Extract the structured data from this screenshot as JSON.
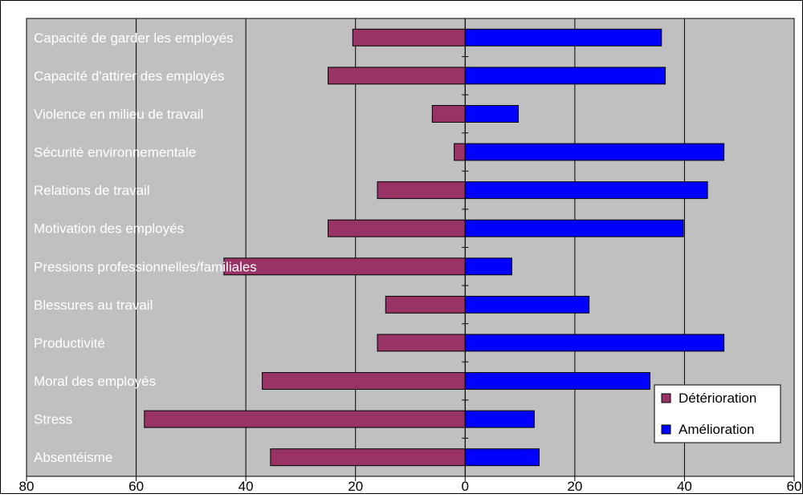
{
  "chart_data": {
    "type": "bar",
    "orientation": "horizontal-diverging",
    "title": "",
    "xlabel": "",
    "ylabel": "",
    "x_ticks": [
      "80",
      "60",
      "40",
      "20",
      "0",
      "20",
      "40",
      "60"
    ],
    "xlim_left": 80,
    "xlim_right": 60,
    "grid": true,
    "legend_position": "bottom-right",
    "categories": [
      "Capacité de garder les employés",
      "Capacité d'attirer des employés",
      "Violence en milieu de travail",
      "Sécurité environnementale",
      "Relations de travail",
      "Motivation des employés",
      "Pressions professionnelles/familiales",
      "Blessures au travail",
      "Productivité",
      "Moral des employés",
      "Stress",
      "Absentéisme"
    ],
    "series": [
      {
        "name": "Détérioration",
        "color": "#993366",
        "values": [
          20.5,
          25,
          6,
          2,
          16,
          25,
          44,
          14.5,
          16,
          37,
          58.5,
          35.5
        ]
      },
      {
        "name": "Amélioration",
        "color": "#0000ff",
        "values": [
          35.8,
          36.5,
          9.7,
          47.2,
          44.2,
          39.8,
          8.5,
          22.6,
          47.2,
          33.7,
          12.6,
          13.5
        ]
      }
    ],
    "plot_background": "#c0c0c0"
  }
}
